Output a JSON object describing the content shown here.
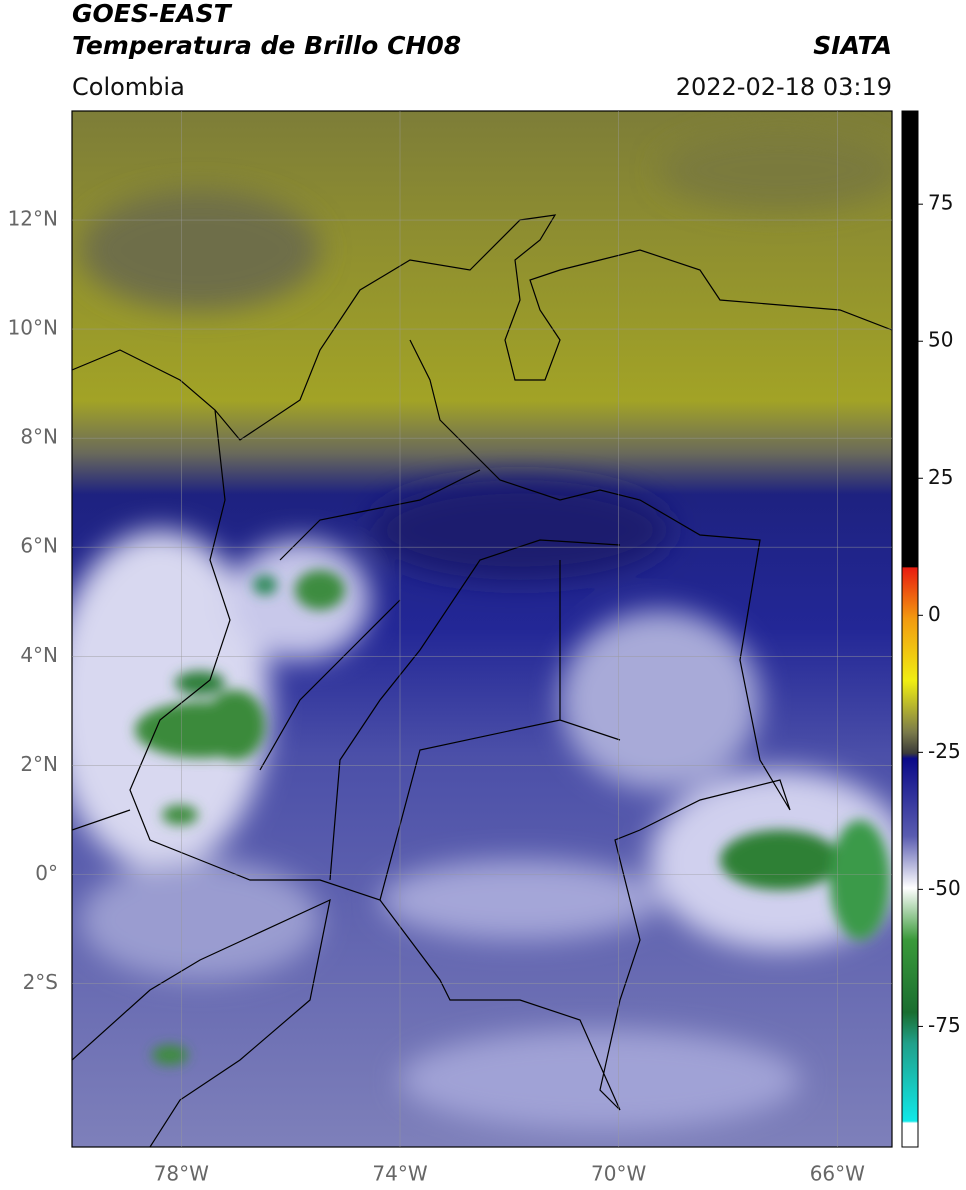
{
  "chart_data": {
    "type": "map",
    "title": "GOES-EAST",
    "subtitle": "Temperatura de Brillo CH08",
    "region": "Colombia",
    "source": "SIATA",
    "timestamp": "2022-02-18 03:19",
    "xlim": [
      -80,
      -65
    ],
    "ylim": [
      -5,
      14
    ],
    "xticks": [
      {
        "value": -78,
        "label": "78°W"
      },
      {
        "value": -74,
        "label": "74°W"
      },
      {
        "value": -70,
        "label": "70°W"
      },
      {
        "value": -66,
        "label": "66°W"
      }
    ],
    "yticks": [
      {
        "value": 12,
        "label": "12°N"
      },
      {
        "value": 10,
        "label": "10°N"
      },
      {
        "value": 8,
        "label": "8°N"
      },
      {
        "value": 6,
        "label": "6°N"
      },
      {
        "value": 4,
        "label": "4°N"
      },
      {
        "value": 2,
        "label": "2°N"
      },
      {
        "value": 0,
        "label": "0°"
      },
      {
        "value": -2,
        "label": "2°S"
      }
    ],
    "grid": true,
    "colorbar": {
      "lim": [
        -97,
        92
      ],
      "ticks": [
        75,
        50,
        25,
        0,
        -25,
        -50,
        -75
      ]
    }
  }
}
